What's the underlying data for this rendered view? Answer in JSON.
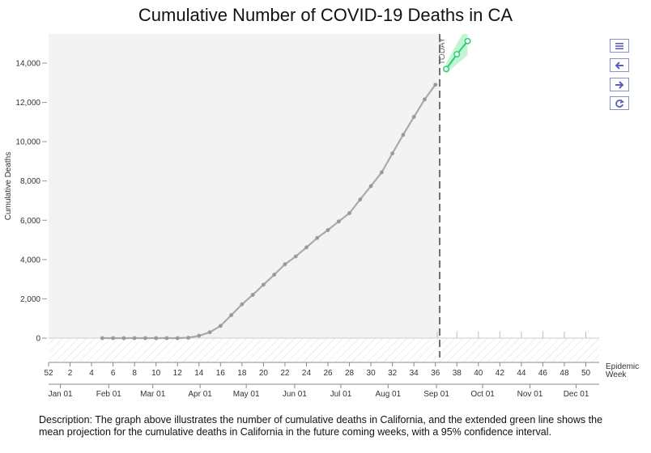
{
  "chart_data": {
    "type": "line",
    "title": "Cumulative Number of COVID-19 Deaths in CA",
    "ylabel": "Cumulative Deaths",
    "xlabel": "Epidemic Week",
    "ylim": [
      -1200,
      15500
    ],
    "xlim": [
      52,
      50.5
    ],
    "y_ticks": [
      0,
      2000,
      4000,
      6000,
      8000,
      10000,
      12000,
      14000
    ],
    "y_tick_labels": [
      "0",
      "2,000",
      "4,000",
      "6,000",
      "8,000",
      "10,000",
      "12,000",
      "14,000"
    ],
    "week_ticks": [
      52,
      2,
      4,
      6,
      8,
      10,
      12,
      14,
      16,
      18,
      20,
      22,
      24,
      26,
      28,
      30,
      32,
      34,
      36,
      38,
      40,
      42,
      44,
      46,
      48,
      50
    ],
    "week_tick_labels": [
      "52",
      "2",
      "4",
      "6",
      "8",
      "10",
      "12",
      "14",
      "16",
      "18",
      "20",
      "22",
      "24",
      "26",
      "28",
      "30",
      "32",
      "34",
      "36",
      "38",
      "40",
      "42",
      "44",
      "46",
      "48",
      "50"
    ],
    "month_ticks": [
      {
        "label": "Jan 01",
        "week": 1.1
      },
      {
        "label": "Feb 01",
        "week": 5.6
      },
      {
        "label": "Mar 01",
        "week": 9.7
      },
      {
        "label": "Apr 01",
        "week": 14.1
      },
      {
        "label": "May 01",
        "week": 18.4
      },
      {
        "label": "Jun 01",
        "week": 22.9
      },
      {
        "label": "Jul 01",
        "week": 27.2
      },
      {
        "label": "Aug 01",
        "week": 31.6
      },
      {
        "label": "Sep 01",
        "week": 36.1
      },
      {
        "label": "Oct 01",
        "week": 40.4
      },
      {
        "label": "Nov 01",
        "week": 44.8
      },
      {
        "label": "Dec 01",
        "week": 49.1
      }
    ],
    "today_label": "TODAY",
    "today_week": 36.4,
    "series": [
      {
        "values": [
          {
            "week": 5,
            "y": 0
          },
          {
            "week": 6,
            "y": 0
          },
          {
            "week": 7,
            "y": 0
          },
          {
            "week": 8,
            "y": 0
          },
          {
            "week": 9,
            "y": 0
          },
          {
            "week": 10,
            "y": 0
          },
          {
            "week": 11,
            "y": 0
          },
          {
            "week": 12,
            "y": 0
          },
          {
            "week": 13,
            "y": 20
          },
          {
            "week": 14,
            "y": 120
          },
          {
            "week": 15,
            "y": 300
          },
          {
            "week": 16,
            "y": 620
          },
          {
            "week": 17,
            "y": 1170
          },
          {
            "week": 18,
            "y": 1720
          },
          {
            "week": 19,
            "y": 2200
          },
          {
            "week": 20,
            "y": 2720
          },
          {
            "week": 21,
            "y": 3230
          },
          {
            "week": 22,
            "y": 3760
          },
          {
            "week": 23,
            "y": 4160
          },
          {
            "week": 24,
            "y": 4620
          },
          {
            "week": 25,
            "y": 5100
          },
          {
            "week": 26,
            "y": 5500
          },
          {
            "week": 27,
            "y": 5940
          },
          {
            "week": 28,
            "y": 6360
          },
          {
            "week": 29,
            "y": 7060
          },
          {
            "week": 30,
            "y": 7740
          },
          {
            "week": 31,
            "y": 8440
          },
          {
            "week": 32,
            "y": 9400
          },
          {
            "week": 33,
            "y": 10350
          },
          {
            "week": 34,
            "y": 11260
          },
          {
            "week": 35,
            "y": 12150
          },
          {
            "week": 36,
            "y": 12900
          }
        ]
      },
      {
        "values": [
          {
            "week": 37,
            "y": 13700
          },
          {
            "week": 38,
            "y": 14450
          },
          {
            "week": 39,
            "y": 15120
          }
        ],
        "ci_lower": [
          13450,
          13950,
          14400
        ],
        "ci_upper": [
          13980,
          15000,
          15900
        ]
      }
    ],
    "colors": {
      "observed": "#aaaaaa",
      "projection": "#2ecc71",
      "ci_band": "#b6f2cc",
      "plot_bg": "#f3f3f3",
      "today_line": "#444444"
    },
    "grid": false
  },
  "toolbar": {
    "icons": [
      "menu-icon",
      "arrow-left-icon",
      "arrow-right-icon",
      "refresh-icon"
    ],
    "accent": "#5a5fbf"
  },
  "description": "Description: The graph above illustrates the number of cumulative deaths in California, and the extended green line shows the mean projection for the cumulative deaths in California in the future coming weeks, with a 95% confidence interval."
}
